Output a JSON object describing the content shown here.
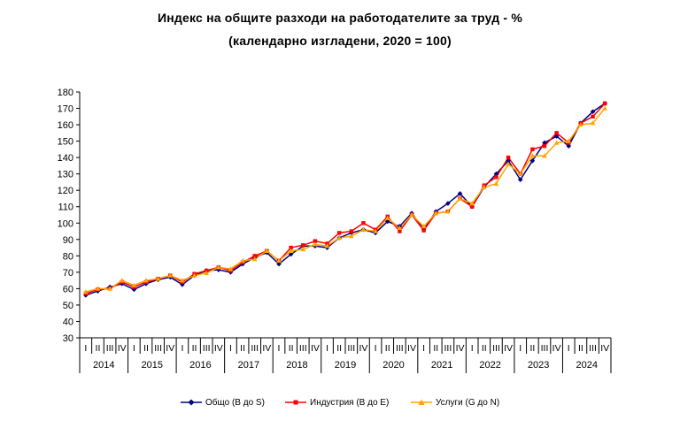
{
  "title": "Индекс на общите разходи на работодателите за труд - %",
  "subtitle": "(календарно изгладени, 2020 = 100)",
  "chart_data": {
    "type": "line",
    "title": "Индекс на общите разходи на работодателите за труд - %",
    "subtitle": "(календарно изгладени, 2020 = 100)",
    "ylim": [
      30,
      180
    ],
    "yticks": [
      30,
      40,
      50,
      60,
      70,
      80,
      90,
      100,
      110,
      120,
      130,
      140,
      150,
      160,
      170,
      180
    ],
    "quarter_labels": [
      "I",
      "II",
      "III",
      "IV"
    ],
    "years": [
      "2014",
      "2015",
      "2016",
      "2017",
      "2018",
      "2019",
      "2020",
      "2021",
      "2022",
      "2023",
      "2024"
    ],
    "grid": false,
    "legend_position": "bottom",
    "series": [
      {
        "name": "Общо (B до S)",
        "color": "#000080",
        "marker": "diamond",
        "values": [
          56,
          58.5,
          61,
          63,
          59.5,
          63,
          65.5,
          67,
          62.5,
          68,
          71,
          71.5,
          70,
          75,
          79,
          82,
          75,
          81,
          86,
          86,
          85,
          91,
          94,
          96,
          94,
          101,
          98,
          106,
          96,
          107,
          112,
          118,
          110,
          122,
          130,
          138,
          126.5,
          138,
          149,
          153,
          147,
          161,
          168,
          173
        ]
      },
      {
        "name": "Индустрия (B до E)",
        "color": "#ff0000",
        "marker": "square",
        "values": [
          57,
          59.5,
          60,
          64,
          61,
          64,
          66,
          68,
          64,
          69,
          71,
          73,
          71,
          76,
          80,
          83,
          77,
          85,
          86.5,
          89,
          87.5,
          94,
          95,
          100,
          96,
          104,
          95,
          105,
          95.5,
          106,
          107,
          115,
          110,
          123,
          128,
          140,
          130,
          145,
          147,
          155,
          149,
          161,
          165,
          173
        ]
      },
      {
        "name": "Услуги (G до N)",
        "color": "#ffa500",
        "marker": "triangle",
        "values": [
          58,
          60,
          60,
          65,
          62,
          65,
          66,
          68,
          65,
          68,
          69.5,
          73,
          72,
          77,
          78,
          83,
          77,
          83,
          84,
          87,
          86,
          91,
          92,
          96,
          95,
          103,
          97,
          105,
          98,
          106,
          107,
          115,
          112,
          122,
          124,
          136,
          130,
          141,
          141,
          149,
          150,
          160,
          161,
          170
        ]
      }
    ]
  }
}
